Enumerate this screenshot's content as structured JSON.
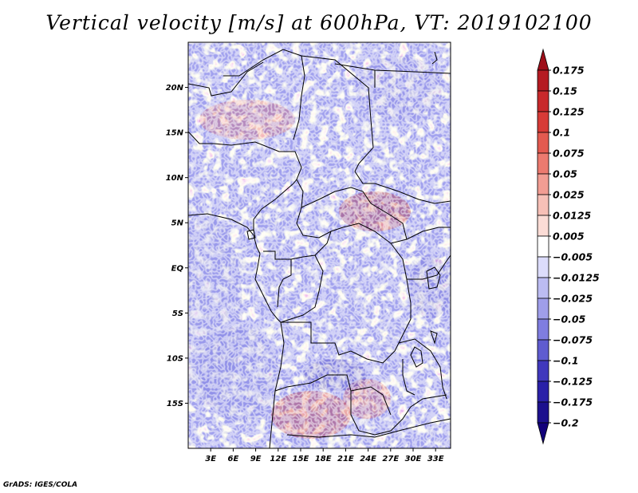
{
  "chart_data": {
    "type": "heatmap",
    "title": "Vertical velocity [m/s] at 600hPa, VT: 2019102100",
    "variable": "Vertical velocity",
    "units": "m/s",
    "level": "600hPa",
    "valid_time": "2019102100",
    "x_range_deg": [
      0,
      35
    ],
    "y_range_deg": [
      -20,
      25
    ],
    "x_ticks": [
      {
        "value": 3,
        "label": "3E"
      },
      {
        "value": 6,
        "label": "6E"
      },
      {
        "value": 9,
        "label": "9E"
      },
      {
        "value": 12,
        "label": "12E"
      },
      {
        "value": 15,
        "label": "15E"
      },
      {
        "value": 18,
        "label": "18E"
      },
      {
        "value": 21,
        "label": "21E"
      },
      {
        "value": 24,
        "label": "24E"
      },
      {
        "value": 27,
        "label": "27E"
      },
      {
        "value": 30,
        "label": "30E"
      },
      {
        "value": 33,
        "label": "33E"
      }
    ],
    "y_ticks": [
      {
        "value": 20,
        "label": "20N"
      },
      {
        "value": 15,
        "label": "15N"
      },
      {
        "value": 10,
        "label": "10N"
      },
      {
        "value": 5,
        "label": "5N"
      },
      {
        "value": 0,
        "label": "EQ"
      },
      {
        "value": -5,
        "label": "5S"
      },
      {
        "value": -10,
        "label": "10S"
      },
      {
        "value": -15,
        "label": "15S"
      }
    ],
    "colorbar": {
      "labels": [
        "0.175",
        "0.15",
        "0.125",
        "0.1",
        "0.075",
        "0.05",
        "0.025",
        "0.0125",
        "0.005",
        "-0.005",
        "-0.0125",
        "-0.025",
        "-0.05",
        "-0.075",
        "-0.1",
        "-0.125",
        "-0.175",
        "-0.2"
      ],
      "colors": [
        "#9e0e19",
        "#b51b22",
        "#c8292b",
        "#d73b37",
        "#e35a50",
        "#ec7a6f",
        "#f29d93",
        "#f7c0b7",
        "#fbdcd6",
        "#ffffff",
        "#dcdcfb",
        "#bcbcf2",
        "#9f9eea",
        "#7f7de0",
        "#5f5cd0",
        "#4038bd",
        "#2a20a8",
        "#1c108e",
        "#12007a"
      ]
    }
  },
  "credit": "GrADS: IGES/COLA"
}
